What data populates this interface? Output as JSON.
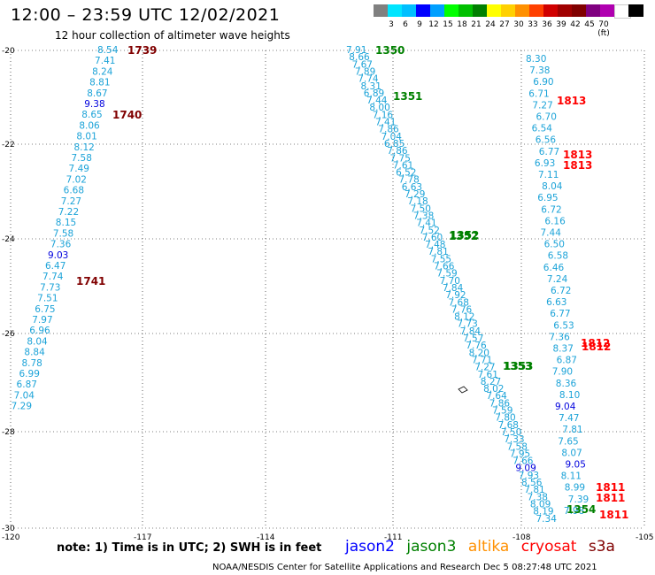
{
  "header": {
    "title": "12:00 – 23:59 UTC 12/02/2021",
    "subtitle": "12 hour collection of altimeter wave heights"
  },
  "colorbar": {
    "colors": [
      "#808080",
      "#00e5ff",
      "#00bfff",
      "#0000ff",
      "#00a0ff",
      "#00ff00",
      "#00c000",
      "#008000",
      "#ffff00",
      "#ffd000",
      "#ff9000",
      "#ff4000",
      "#d00000",
      "#a00000",
      "#800000",
      "#800080",
      "#b000b0",
      "#ffffff",
      "#000000"
    ],
    "labels": [
      "3",
      "6",
      "9",
      "12",
      "15",
      "18",
      "21",
      "24",
      "27",
      "30",
      "33",
      "36",
      "39",
      "42",
      "45",
      "70 (ft)"
    ]
  },
  "axes": {
    "lat_labels": [
      "-20",
      "-22",
      "-24",
      "-26",
      "-28",
      "-30"
    ],
    "lon_labels": [
      "-120",
      "-117",
      "-114",
      "-111",
      "-108",
      "-105"
    ]
  },
  "tracks": {
    "t1": [
      "8.54",
      "7.41",
      "8.24",
      "8.81",
      "8.67",
      "9.38",
      "8.65",
      "8.06",
      "8.01",
      "8.12",
      "7.58",
      "7.49",
      "7.02",
      "6.68",
      "7.27",
      "7.22",
      "8.15",
      "7.58",
      "7.36",
      "9.03",
      "6.47",
      "7.74",
      "7.73",
      "7.51",
      "6.75",
      "7.97",
      "6.96",
      "8.04",
      "8.84",
      "8.78",
      "6.99",
      "6.87",
      "7.04",
      "7.29"
    ],
    "t2": [
      "7.91",
      "8.66",
      "7.67",
      "7.89",
      "7.74",
      "8.31",
      "6.89",
      "7.44",
      "8.00",
      "7.16",
      "7.41",
      "7.86",
      "7.04",
      "6.85",
      "7.86",
      "7.75",
      "7.61",
      "6.52",
      "7.78",
      "6.63",
      "7.29",
      "7.18",
      "7.50",
      "7.38",
      "7.41",
      "7.52",
      "7.60",
      "7.48",
      "7.81",
      "7.55",
      "7.66",
      "7.59",
      "7.70",
      "7.84",
      "7.92",
      "7.68",
      "7.76",
      "8.12",
      "7.73",
      "7.84",
      "7.57",
      "7.76",
      "8.20",
      "7.71",
      "7.27",
      "7.61",
      "8.27",
      "8.02",
      "7.64",
      "7.86",
      "7.59",
      "7.80",
      "7.68",
      "7.50",
      "7.33",
      "7.58",
      "7.95",
      "7.66",
      "9.09",
      "7.93",
      "8.56",
      "7.81",
      "7.38",
      "8.09",
      "8.19",
      "7.34"
    ],
    "t4": [
      "8.30",
      "7.38",
      "6.90",
      "6.71",
      "7.27",
      "6.70",
      "6.54",
      "6.56",
      "6.77",
      "6.93",
      "7.11",
      "8.04",
      "6.95",
      "6.72",
      "6.16",
      "7.44",
      "6.50",
      "6.58",
      "6.46",
      "7.24",
      "6.72",
      "6.63",
      "6.77",
      "6.53",
      "7.36",
      "8.37",
      "6.87",
      "7.90",
      "8.36",
      "8.10",
      "9.04",
      "7.47",
      "7.81",
      "7.65",
      "8.07",
      "9.05",
      "8.11",
      "8.99",
      "7.39",
      "7.98"
    ]
  },
  "time_labels": [
    "1739",
    "1740",
    "1741",
    "1350",
    "1351",
    "1352",
    "1352",
    "1353",
    "1353",
    "1354",
    "1813",
    "1813",
    "1813",
    "1812",
    "1812",
    "1811",
    "1811",
    "1811"
  ],
  "footer": {
    "note": "note:  1) Time is in UTC;  2) SWH is in feet",
    "legend": [
      "jason2",
      "jason3",
      "altika",
      "cryosat",
      "s3a"
    ],
    "legend_colors": [
      "#0000ff",
      "#008000",
      "#ff9000",
      "#ff0000",
      "#800000"
    ],
    "credit": "NOAA/NESDIS Center for Satellite Applications and Research    Dec  5 08:27:48 UTC 2021"
  }
}
